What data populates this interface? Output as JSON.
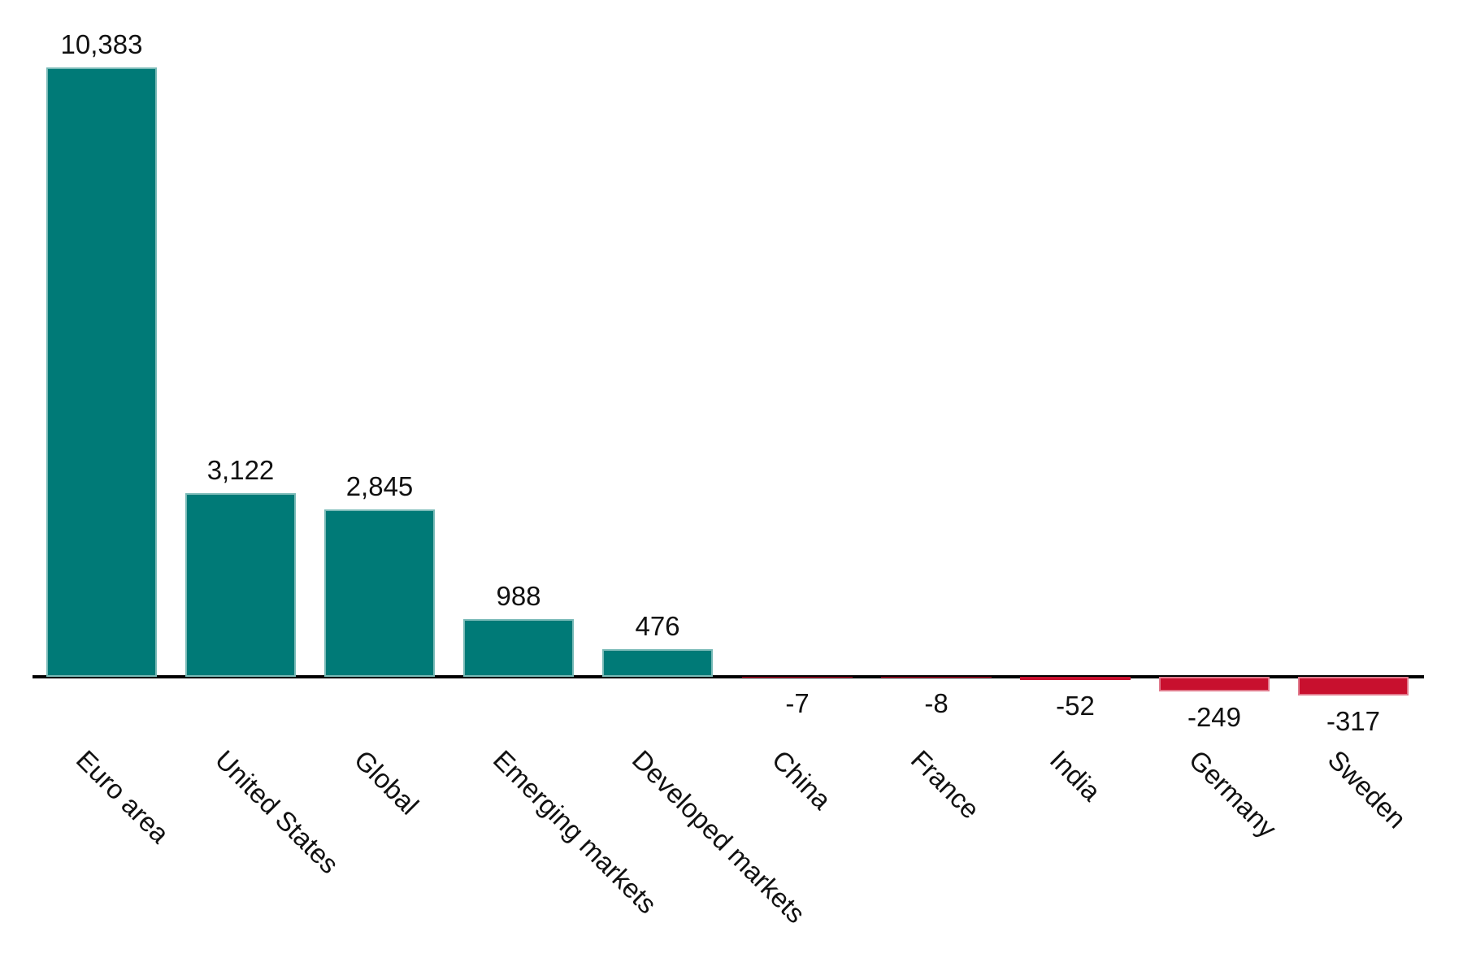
{
  "chart_data": {
    "type": "bar",
    "categories": [
      "Euro area",
      "United States",
      "Global",
      "Emerging markets",
      "Developed markets",
      "China",
      "France",
      "India",
      "Germany",
      "Sweden"
    ],
    "values": [
      10383,
      3122,
      2845,
      988,
      476,
      -7,
      -8,
      -52,
      -249,
      -317
    ],
    "value_labels": [
      "10,383",
      "3,122",
      "2,845",
      "988",
      "476",
      "-7",
      "-8",
      "-52",
      "-249",
      "-317"
    ],
    "title": "",
    "xlabel": "",
    "ylabel": "",
    "ylim": [
      -500,
      10800
    ],
    "grid": false,
    "legend_position": "none",
    "orientation": "vertical",
    "tick_label_rotation_deg": 45,
    "colors": {
      "positive_bar": "#007a77",
      "negative_bar": "#c8102e",
      "axis": "#000000",
      "text": "#111111",
      "background": "#ffffff"
    }
  }
}
